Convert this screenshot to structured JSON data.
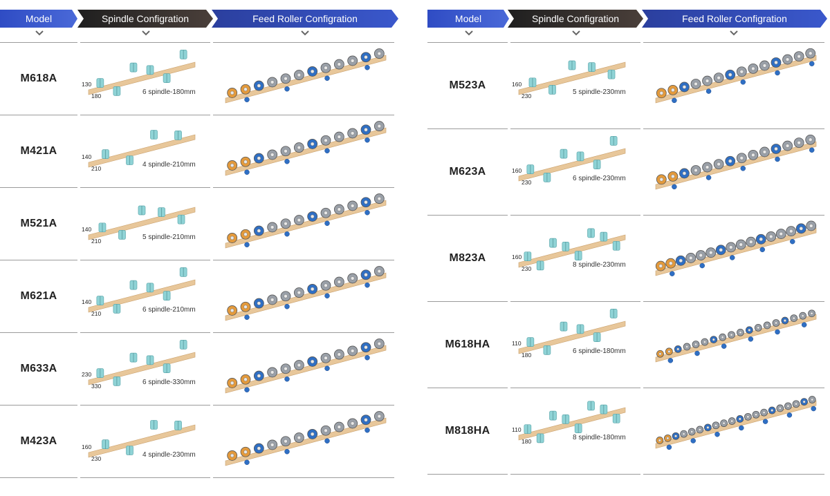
{
  "headers": {
    "model": "Model",
    "spindle": "Spindle Configration",
    "feed": "Feed Roller Configration"
  },
  "colors": {
    "model_header": "#3a5bd0",
    "spindle_header": "#2b2b2b",
    "feed_header": "#2f4bb5",
    "beam": "#e8c79a",
    "spindle_part": "#8fd3d6",
    "roller_orange": "#e39a3c",
    "roller_blue": "#2f6fc4",
    "roller_gray": "#9aa0a8"
  },
  "left_rows": [
    {
      "model": "M618A",
      "spindle_label": "6 spindle-180mm",
      "dim_h": "130",
      "dim_w": "180",
      "spindles": 6,
      "rollers": 12
    },
    {
      "model": "M421A",
      "spindle_label": "4 spindle-210mm",
      "dim_h": "140",
      "dim_w": "210",
      "spindles": 4,
      "rollers": 12
    },
    {
      "model": "M521A",
      "spindle_label": "5 spindle-210mm",
      "dim_h": "140",
      "dim_w": "210",
      "spindles": 5,
      "rollers": 12
    },
    {
      "model": "M621A",
      "spindle_label": "6 spindle-210mm",
      "dim_h": "140",
      "dim_w": "210",
      "spindles": 6,
      "rollers": 12
    },
    {
      "model": "M633A",
      "spindle_label": "6 spindle-330mm",
      "dim_h": "230",
      "dim_w": "330",
      "spindles": 6,
      "rollers": 12
    },
    {
      "model": "M423A",
      "spindle_label": "4 spindle-230mm",
      "dim_h": "160",
      "dim_w": "230",
      "spindles": 4,
      "rollers": 12
    }
  ],
  "right_rows": [
    {
      "model": "M523A",
      "spindle_label": "5 spindle-230mm",
      "dim_h": "160",
      "dim_w": "230",
      "spindles": 5,
      "rollers": 14
    },
    {
      "model": "M623A",
      "spindle_label": "6 spindle-230mm",
      "dim_h": "160",
      "dim_w": "230",
      "spindles": 6,
      "rollers": 14
    },
    {
      "model": "M823A",
      "spindle_label": "8 spindle-230mm",
      "dim_h": "160",
      "dim_w": "230",
      "spindles": 8,
      "rollers": 16
    },
    {
      "model": "M618HA",
      "spindle_label": "6 spindle-180mm",
      "dim_h": "110",
      "dim_w": "180",
      "spindles": 6,
      "rollers": 18
    },
    {
      "model": "M818HA",
      "spindle_label": "8 spindle-180mm",
      "dim_h": "110",
      "dim_w": "180",
      "spindles": 8,
      "rollers": 20
    }
  ]
}
